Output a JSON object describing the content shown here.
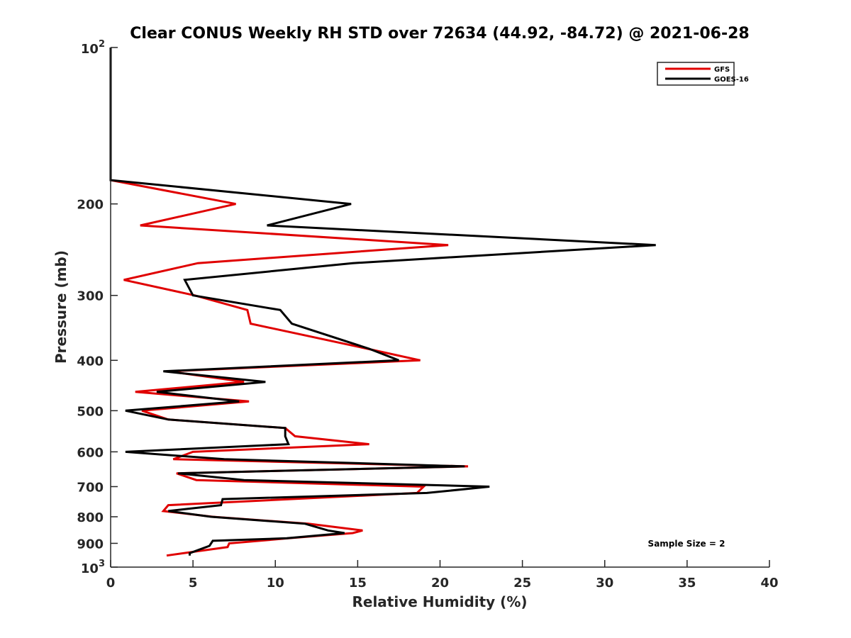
{
  "chart_data": {
    "type": "line",
    "title": "Clear CONUS Weekly RH STD over 72634 (44.92, -84.72) @ 2021-06-28",
    "xlabel": "Relative Humidity (%)",
    "ylabel": "Pressure (mb)",
    "xlim": [
      0,
      40
    ],
    "ylim": [
      100,
      1000
    ],
    "yscale": "log",
    "y_reversed": true,
    "grid": false,
    "x_ticks": [
      0,
      5,
      10,
      15,
      20,
      25,
      30,
      35,
      40
    ],
    "x_tick_labels": [
      "0",
      "5",
      "10",
      "15",
      "20",
      "25",
      "30",
      "35",
      "40"
    ],
    "y_ticks": [
      100,
      200,
      300,
      400,
      500,
      600,
      700,
      800,
      900,
      1000
    ],
    "y_tick_labels": [
      {
        "base": "10",
        "exp": "2"
      },
      {
        "text": "200"
      },
      {
        "text": "300"
      },
      {
        "text": "400"
      },
      {
        "text": "500"
      },
      {
        "text": "600"
      },
      {
        "text": "700"
      },
      {
        "text": "800"
      },
      {
        "text": "900"
      },
      {
        "base": "10",
        "exp": "3"
      }
    ],
    "legend": {
      "placement": "top-right"
    },
    "annotations": [
      {
        "text": "Sample Size = 2",
        "placement": "bottom-right"
      }
    ],
    "series": [
      {
        "name": "GFS",
        "color": "#e00000",
        "pressure": [
          100,
          180,
          200,
          220,
          240,
          260,
          280,
          300,
          320,
          340,
          380,
          400,
          420,
          440,
          460,
          480,
          500,
          520,
          540,
          560,
          580,
          600,
          620,
          640,
          660,
          680,
          700,
          720,
          760,
          780,
          800,
          825,
          850,
          860,
          880,
          900,
          915,
          950
        ],
        "values": [
          0,
          0,
          7.6,
          1.8,
          20.5,
          5.3,
          0.8,
          5.1,
          8.3,
          8.5,
          15.6,
          18.8,
          3.5,
          8.1,
          1.5,
          8.4,
          1.9,
          3.5,
          10.6,
          11.2,
          15.7,
          5.0,
          3.8,
          21.7,
          4.0,
          5.2,
          19.0,
          18.6,
          3.5,
          3.2,
          6.2,
          12.0,
          15.3,
          14.7,
          10.8,
          7.2,
          7.1,
          3.4
        ]
      },
      {
        "name": "GOES-16",
        "color": "#000000",
        "pressure": [
          100,
          180,
          200,
          220,
          240,
          260,
          280,
          300,
          320,
          340,
          380,
          400,
          420,
          440,
          460,
          480,
          500,
          520,
          540,
          560,
          580,
          600,
          620,
          640,
          660,
          680,
          700,
          720,
          740,
          760,
          780,
          800,
          825,
          850,
          860,
          880,
          890,
          910,
          940,
          950
        ],
        "values": [
          0,
          0,
          14.6,
          9.5,
          33.1,
          14.7,
          4.5,
          5.0,
          10.3,
          11.0,
          15.7,
          17.5,
          3.2,
          9.4,
          2.8,
          7.8,
          0.9,
          3.5,
          10.6,
          10.6,
          10.8,
          0.9,
          6.9,
          21.5,
          4.1,
          8.1,
          23.0,
          19.2,
          6.8,
          6.7,
          3.5,
          6.1,
          11.8,
          13.2,
          14.2,
          10.7,
          6.2,
          6.0,
          4.8,
          4.8
        ]
      }
    ]
  }
}
